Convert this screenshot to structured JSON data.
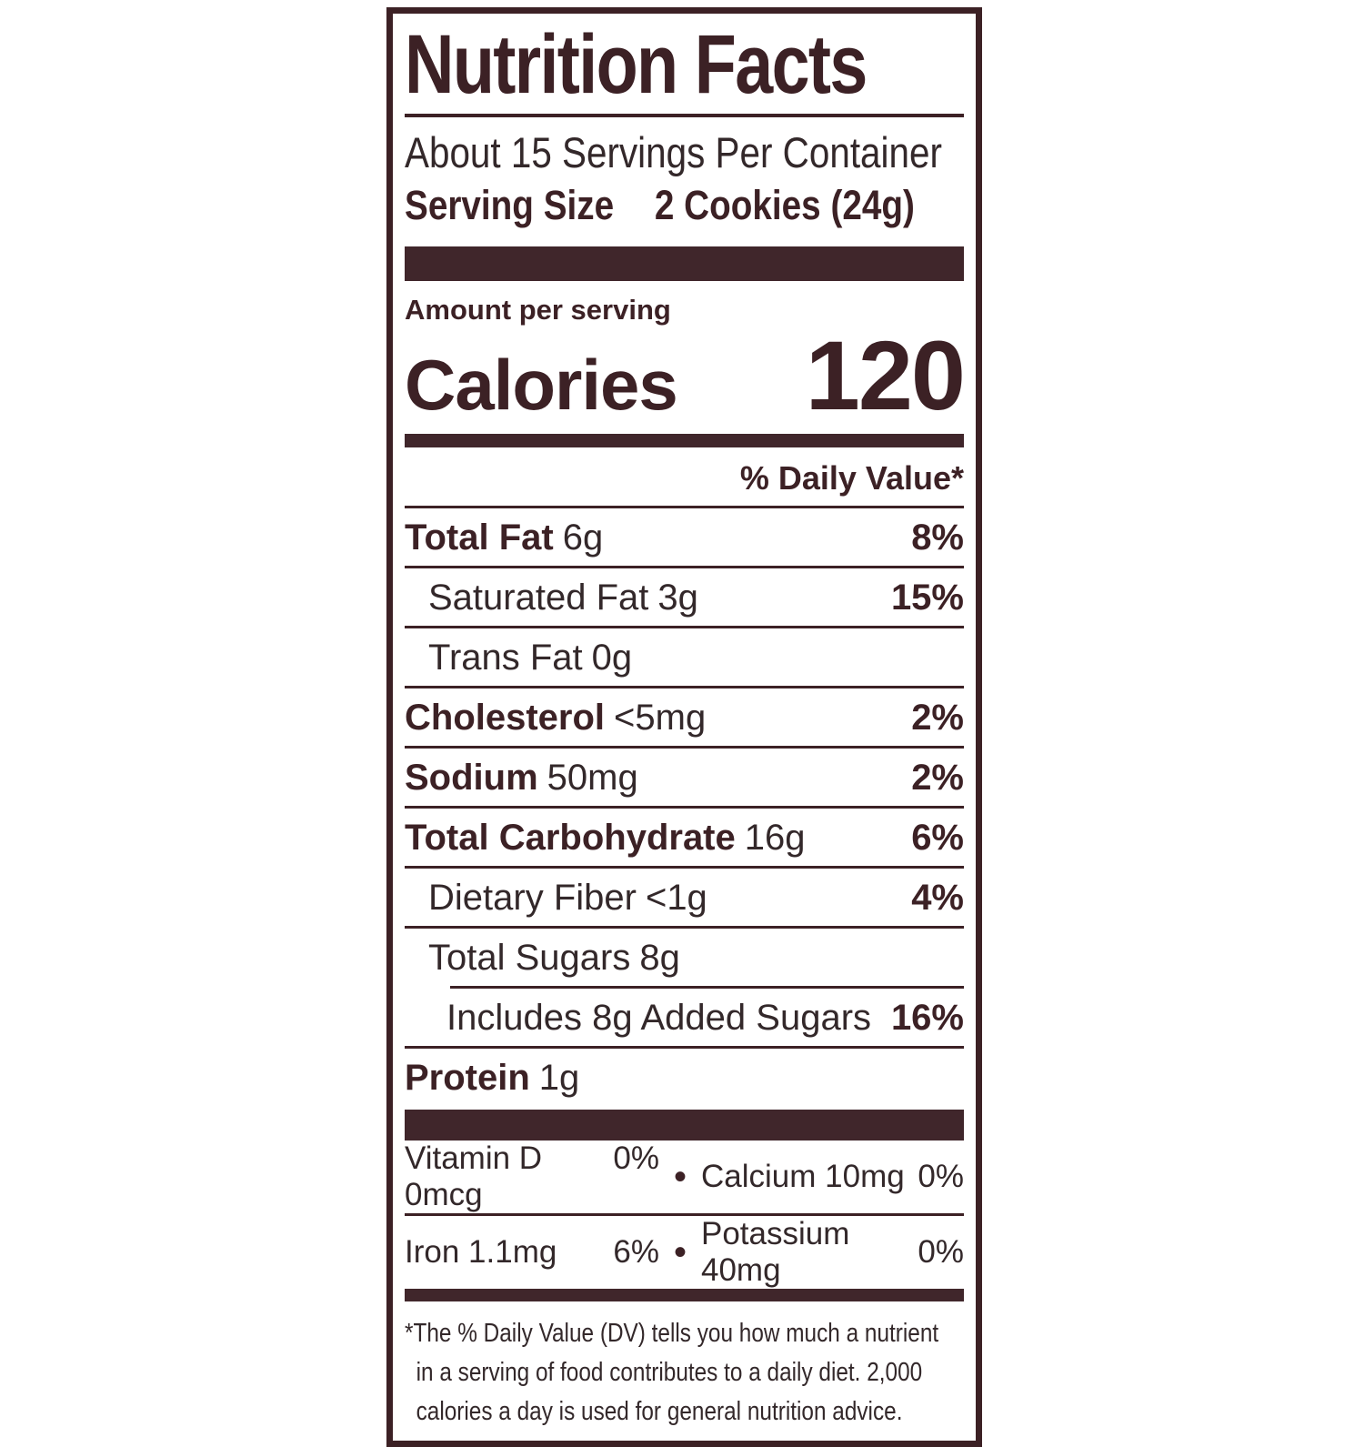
{
  "colors": {
    "brand_dark_brown": "#3c2125",
    "bar_brown": "#40262b",
    "background": "#ffffff"
  },
  "label": {
    "title": "Nutrition Facts",
    "servings_per_container": "About 15 Servings Per Container",
    "serving_size_label": "Serving Size",
    "serving_size_value": "2 Cookies (24g)",
    "amount_per_serving": "Amount per serving",
    "calories_label": "Calories",
    "calories_value": "120",
    "daily_value_header": "% Daily Value*",
    "bullet": "•",
    "nutrients": [
      {
        "name": "Total Fat",
        "amount": "6g",
        "dv": "8%"
      },
      {
        "name": "Saturated Fat",
        "amount": "3g",
        "dv": "15%"
      },
      {
        "name": "Trans Fat",
        "amount": "0g",
        "dv": ""
      },
      {
        "name": "Cholesterol",
        "amount": "<5mg",
        "dv": "2%"
      },
      {
        "name": "Sodium",
        "amount": "50mg",
        "dv": "2%"
      },
      {
        "name": "Total Carbohydrate",
        "amount": "16g",
        "dv": "6%"
      },
      {
        "name": "Dietary Fiber",
        "amount": "<1g",
        "dv": "4%"
      },
      {
        "name": "Total Sugars",
        "amount": "8g",
        "dv": ""
      },
      {
        "name": "Includes 8g Added Sugars",
        "amount": "",
        "dv": "16%"
      },
      {
        "name": "Protein",
        "amount": "1g",
        "dv": ""
      }
    ],
    "micronutrients": [
      {
        "left_name": "Vitamin D 0mcg",
        "left_dv": "0%",
        "right_name": "Calcium 10mg",
        "right_dv": "0%"
      },
      {
        "left_name": "Iron 1.1mg",
        "left_dv": "6%",
        "right_name": "Potassium 40mg",
        "right_dv": "0%"
      }
    ],
    "footnote_lines": [
      "*The % Daily Value (DV) tells you how much a nutrient",
      "in a serving of food contributes to a daily diet. 2,000",
      "calories a day is used for general nutrition advice."
    ]
  }
}
